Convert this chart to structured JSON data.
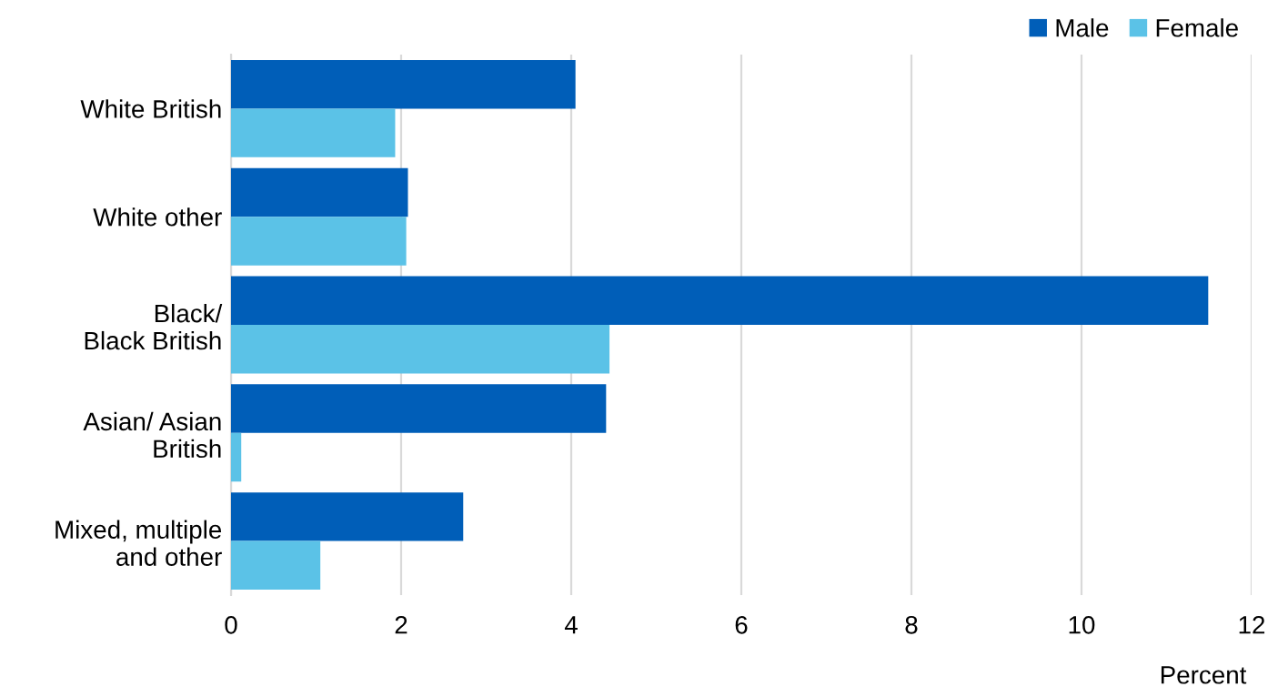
{
  "chart_data": {
    "type": "bar",
    "orientation": "horizontal",
    "xlabel": "Percent",
    "categories": [
      "White British",
      "White other",
      "Black/\nBlack British",
      "Asian/ Asian\nBritish",
      "Mixed, multiple\nand other"
    ],
    "series": [
      {
        "name": "Male",
        "color": "#005eb8",
        "values": [
          4.05,
          2.08,
          11.49,
          4.41,
          2.73
        ]
      },
      {
        "name": "Female",
        "color": "#5bc2e7",
        "values": [
          1.93,
          2.06,
          4.45,
          0.12,
          1.05
        ]
      }
    ],
    "xlim": [
      0,
      12
    ],
    "xticks": [
      0,
      2,
      4,
      6,
      8,
      10,
      12
    ],
    "grid": "x",
    "legend": "top right"
  }
}
